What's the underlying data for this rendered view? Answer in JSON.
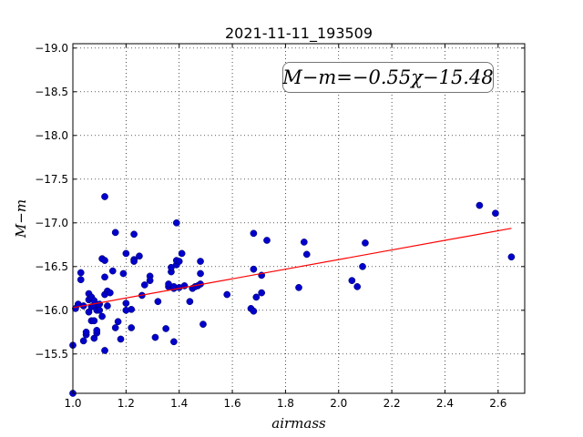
{
  "chart_data": {
    "type": "scatter",
    "title": "2021-11-11_193509",
    "xlabel": "airmass",
    "ylabel": "M−m",
    "xlim": [
      1.0,
      2.7
    ],
    "ylim": [
      -19.05,
      -15.05
    ],
    "y_inverted": true,
    "grid": true,
    "x_ticks": [
      "1.0",
      "1.2",
      "1.4",
      "1.6",
      "1.8",
      "2.0",
      "2.2",
      "2.4",
      "2.6"
    ],
    "x_tick_values": [
      1.0,
      1.2,
      1.4,
      1.6,
      1.8,
      2.0,
      2.2,
      2.4,
      2.6
    ],
    "y_ticks": [
      "−15.5",
      "−16.0",
      "−16.5",
      "−17.0",
      "−17.5",
      "−18.0",
      "−18.5",
      "−19.0"
    ],
    "y_tick_values": [
      -15.5,
      -16.0,
      -16.5,
      -17.0,
      -17.5,
      -18.0,
      -18.5,
      -19.0
    ],
    "fit_text": "M−m=−0.55χ−15.48",
    "colors": {
      "points": "#0000cc",
      "fit": "#ff0000"
    },
    "fit_line": {
      "slope": -0.55,
      "intercept": -15.48,
      "x": [
        1.0,
        2.65
      ]
    },
    "points": [
      [
        1.0,
        -15.05
      ],
      [
        1.0,
        -15.6
      ],
      [
        1.01,
        -16.02
      ],
      [
        1.02,
        -16.07
      ],
      [
        1.03,
        -16.35
      ],
      [
        1.03,
        -16.43
      ],
      [
        1.04,
        -16.05
      ],
      [
        1.04,
        -15.65
      ],
      [
        1.05,
        -15.72
      ],
      [
        1.05,
        -15.75
      ],
      [
        1.06,
        -15.98
      ],
      [
        1.06,
        -16.12
      ],
      [
        1.06,
        -16.19
      ],
      [
        1.07,
        -15.88
      ],
      [
        1.07,
        -16.04
      ],
      [
        1.07,
        -16.15
      ],
      [
        1.08,
        -15.88
      ],
      [
        1.08,
        -16.05
      ],
      [
        1.08,
        -16.11
      ],
      [
        1.08,
        -15.68
      ],
      [
        1.09,
        -15.74
      ],
      [
        1.09,
        -15.77
      ],
      [
        1.09,
        -16.0
      ],
      [
        1.1,
        -16.07
      ],
      [
        1.1,
        -16.0
      ],
      [
        1.11,
        -16.59
      ],
      [
        1.11,
        -15.93
      ],
      [
        1.12,
        -15.54
      ],
      [
        1.12,
        -16.18
      ],
      [
        1.12,
        -16.38
      ],
      [
        1.12,
        -16.57
      ],
      [
        1.12,
        -17.3
      ],
      [
        1.13,
        -16.05
      ],
      [
        1.13,
        -16.22
      ],
      [
        1.14,
        -16.2
      ],
      [
        1.15,
        -16.45
      ],
      [
        1.16,
        -15.8
      ],
      [
        1.16,
        -16.89
      ],
      [
        1.17,
        -15.87
      ],
      [
        1.18,
        -15.67
      ],
      [
        1.19,
        -16.42
      ],
      [
        1.2,
        -16.0
      ],
      [
        1.2,
        -16.08
      ],
      [
        1.2,
        -16.65
      ],
      [
        1.22,
        -16.01
      ],
      [
        1.22,
        -15.8
      ],
      [
        1.23,
        -16.58
      ],
      [
        1.23,
        -16.56
      ],
      [
        1.23,
        -16.87
      ],
      [
        1.25,
        -16.62
      ],
      [
        1.26,
        -16.17
      ],
      [
        1.27,
        -16.29
      ],
      [
        1.29,
        -16.39
      ],
      [
        1.29,
        -16.34
      ],
      [
        1.31,
        -15.69
      ],
      [
        1.32,
        -16.1
      ],
      [
        1.35,
        -15.79
      ],
      [
        1.36,
        -16.27
      ],
      [
        1.36,
        -16.3
      ],
      [
        1.37,
        -16.44
      ],
      [
        1.37,
        -16.49
      ],
      [
        1.38,
        -15.64
      ],
      [
        1.38,
        -16.25
      ],
      [
        1.38,
        -16.27
      ],
      [
        1.39,
        -16.52
      ],
      [
        1.39,
        -16.57
      ],
      [
        1.39,
        -17.0
      ],
      [
        1.4,
        -16.56
      ],
      [
        1.4,
        -16.26
      ],
      [
        1.41,
        -16.65
      ],
      [
        1.42,
        -16.28
      ],
      [
        1.44,
        -16.1
      ],
      [
        1.45,
        -16.25
      ],
      [
        1.46,
        -16.27
      ],
      [
        1.47,
        -16.28
      ],
      [
        1.48,
        -16.42
      ],
      [
        1.48,
        -16.56
      ],
      [
        1.48,
        -16.3
      ],
      [
        1.49,
        -15.84
      ],
      [
        1.58,
        -16.18
      ],
      [
        1.67,
        -16.02
      ],
      [
        1.68,
        -15.99
      ],
      [
        1.68,
        -16.47
      ],
      [
        1.68,
        -16.88
      ],
      [
        1.69,
        -16.15
      ],
      [
        1.71,
        -16.2
      ],
      [
        1.71,
        -16.4
      ],
      [
        1.73,
        -16.8
      ],
      [
        1.85,
        -16.26
      ],
      [
        1.87,
        -16.78
      ],
      [
        1.88,
        -16.64
      ],
      [
        2.05,
        -16.34
      ],
      [
        2.07,
        -16.27
      ],
      [
        2.09,
        -16.5
      ],
      [
        2.1,
        -16.77
      ],
      [
        2.53,
        -17.2
      ],
      [
        2.59,
        -17.11
      ],
      [
        2.65,
        -16.61
      ]
    ]
  }
}
